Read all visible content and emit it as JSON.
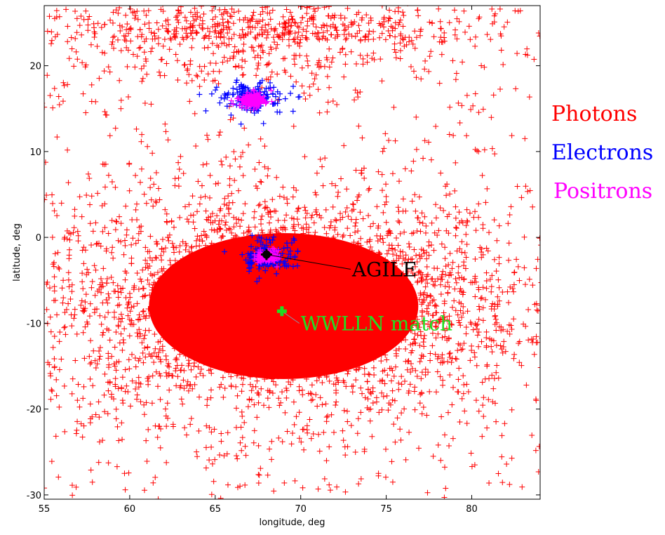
{
  "chart_data": {
    "type": "scatter",
    "title": "",
    "xlabel": "longitude, deg",
    "ylabel": "latitude, deg",
    "xlim": [
      55,
      84
    ],
    "ylim": [
      -30.5,
      27
    ],
    "xticks": [
      55,
      60,
      65,
      70,
      75,
      80
    ],
    "yticks": [
      -30,
      -20,
      -10,
      0,
      10,
      20
    ],
    "grid": false,
    "legend": {
      "position": "right-outside"
    },
    "colors": {
      "photons": "#ff0000",
      "electrons": "#0000ff",
      "positrons": "#ff00ff",
      "agile": "#000000",
      "wwlln": "#00dd00"
    },
    "series": [
      {
        "name": "Photons",
        "color": "#ff0000",
        "description": "Dense cloud of photon hits",
        "cloud_center": [
          69,
          -8
        ],
        "cloud_spread": [
          7.5,
          8.5
        ],
        "upper_cloud_center": [
          67.5,
          22
        ]
      },
      {
        "name": "Electrons",
        "color": "#0000ff",
        "clusters": [
          {
            "center": [
              67.2,
              16.3
            ],
            "radius": 1.6
          },
          {
            "center": [
              68.0,
              -2.2
            ],
            "radius": 1.3
          }
        ]
      },
      {
        "name": "Positrons",
        "color": "#ff00ff",
        "clusters": [
          {
            "center": [
              67.2,
              16.0
            ],
            "radius": 0.9
          },
          {
            "center": [
              68.0,
              -2.2
            ],
            "radius": 0.7
          }
        ]
      }
    ],
    "annotations": [
      {
        "label": "AGILE",
        "point": [
          68.0,
          -2.0
        ],
        "text_at": [
          73.0,
          -4.2
        ],
        "color": "#000000"
      },
      {
        "label": "WWLLN  match",
        "point": [
          68.9,
          -8.6
        ],
        "text_at": [
          70.0,
          -10.5
        ],
        "color": "#22dd22"
      }
    ]
  }
}
